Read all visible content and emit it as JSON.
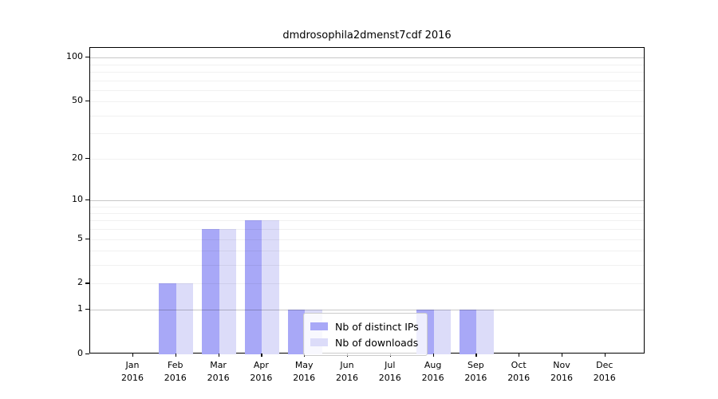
{
  "chart_data": {
    "type": "bar",
    "title": "dmdrosophila2dmenst7cdf 2016",
    "year": "2016",
    "categories": [
      "Jan",
      "Feb",
      "Mar",
      "Apr",
      "May",
      "Jun",
      "Jul",
      "Aug",
      "Sep",
      "Oct",
      "Nov",
      "Dec"
    ],
    "series": [
      {
        "name": "Nb of distinct IPs",
        "color": "#a8a8f7",
        "values": [
          0,
          2,
          6,
          7,
          1,
          0,
          0,
          1,
          1,
          0,
          0,
          0
        ]
      },
      {
        "name": "Nb of downloads",
        "color": "#dcdcf9",
        "values": [
          0,
          2,
          6,
          7,
          1,
          0,
          0,
          1,
          1,
          0,
          0,
          0
        ]
      }
    ],
    "y_ticks": [
      0,
      1,
      2,
      5,
      10,
      20,
      50,
      100
    ],
    "major_gridlines": [
      1,
      10,
      100
    ],
    "minor_gridlines": [
      2,
      3,
      4,
      5,
      6,
      7,
      8,
      9,
      20,
      30,
      40,
      50,
      60,
      70,
      80,
      90
    ],
    "scale": "log10(1+x)",
    "ylim": [
      0,
      116
    ],
    "grid": true,
    "legend_position": "lower center",
    "xlabel": "",
    "ylabel": ""
  },
  "colors": {
    "major_grid": "rgba(0,0,0,0.22)",
    "minor_grid": "rgba(0,0,0,0.055)",
    "spine": "#000000",
    "legend_border": "#cccccc"
  }
}
